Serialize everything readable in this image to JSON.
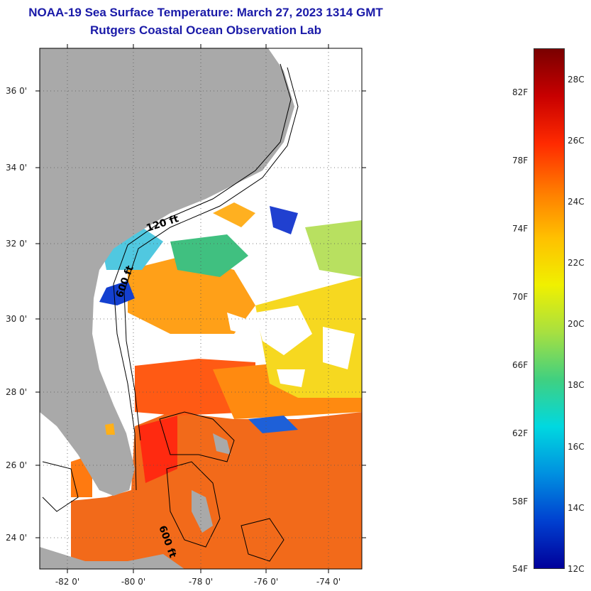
{
  "title": "NOAA-19 Sea Surface Temperature:  March 27, 2023 1314 GMT",
  "subtitle": "Rutgers Coastal Ocean Observation Lab",
  "map": {
    "lat_ticks": [
      "36 0'",
      "34 0'",
      "32 0'",
      "30 0'",
      "28 0'",
      "26 0'",
      "24 0'"
    ],
    "lon_ticks": [
      "-82 0'",
      "-80 0'",
      "-78 0'",
      "-76 0'",
      "-74 0'"
    ],
    "contour_labels": [
      "120 ft",
      "600 ft",
      "600 ft"
    ],
    "colors": {
      "land": "#a9a9a9",
      "cloud": "#ffffff",
      "outline": "#000000"
    }
  },
  "colorbar": {
    "fahrenheit_labels": [
      "82F",
      "78F",
      "74F",
      "70F",
      "66F",
      "62F",
      "58F",
      "54F"
    ],
    "celsius_labels": [
      "28C",
      "26C",
      "24C",
      "22C",
      "20C",
      "18C",
      "16C",
      "14C",
      "12C"
    ],
    "range_c": [
      12,
      29
    ],
    "gradient": [
      "#7a0000",
      "#c80000",
      "#ff2a00",
      "#ff7a00",
      "#ffc000",
      "#f0f000",
      "#a8e040",
      "#40d080",
      "#00d8e0",
      "#0090e0",
      "#0040d0",
      "#00009a"
    ]
  }
}
